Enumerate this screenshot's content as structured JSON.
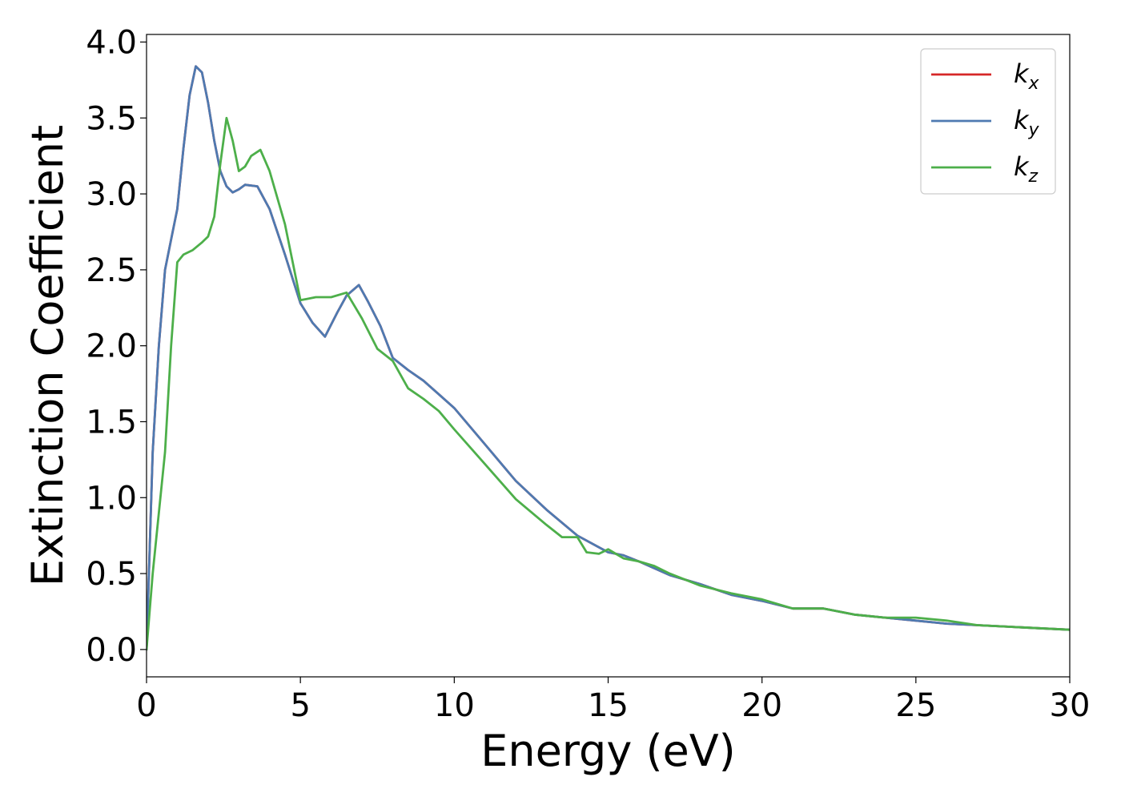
{
  "chart_data": {
    "type": "line",
    "title": "",
    "xlabel": "Energy (eV)",
    "ylabel": "Extinction Coefficient",
    "xlim": [
      0,
      30
    ],
    "ylim": [
      -0.18,
      4.05
    ],
    "xticks": [
      0,
      5,
      10,
      15,
      20,
      25,
      30
    ],
    "xtick_labels": [
      "0",
      "5",
      "10",
      "15",
      "20",
      "25",
      "30"
    ],
    "yticks": [
      0.0,
      0.5,
      1.0,
      1.5,
      2.0,
      2.5,
      3.0,
      3.5,
      4.0
    ],
    "ytick_labels": [
      "0.0",
      "0.5",
      "1.0",
      "1.5",
      "2.0",
      "2.5",
      "3.0",
      "3.5",
      "4.0"
    ],
    "grid": false,
    "legend_position": "top-right",
    "series": [
      {
        "name": "k",
        "subscript": "x",
        "color": "#d62728",
        "x": [
          0,
          0.2,
          0.4,
          0.6,
          0.8,
          1.0,
          1.2,
          1.4,
          1.6,
          1.8,
          2.0,
          2.2,
          2.4,
          2.6,
          2.8,
          3.0,
          3.2,
          3.6,
          4.0,
          4.5,
          5.0,
          5.4,
          5.8,
          6.2,
          6.5,
          6.9,
          7.2,
          7.6,
          8.0,
          8.5,
          9.0,
          9.5,
          10.0,
          11.0,
          12.0,
          13.0,
          14.0,
          15.0,
          15.5,
          16.0,
          17.0,
          18.0,
          19.0,
          20.0,
          21.0,
          22.0,
          23.0,
          24.0,
          25.0,
          26.0,
          27.0,
          28.0,
          29.0,
          30.0
        ],
        "y": [
          0.0,
          1.3,
          2.0,
          2.5,
          2.7,
          2.9,
          3.3,
          3.65,
          3.84,
          3.8,
          3.6,
          3.35,
          3.15,
          3.05,
          3.01,
          3.03,
          3.06,
          3.05,
          2.9,
          2.6,
          2.28,
          2.15,
          2.06,
          2.22,
          2.33,
          2.4,
          2.29,
          2.13,
          1.92,
          1.84,
          1.77,
          1.68,
          1.59,
          1.35,
          1.11,
          0.92,
          0.75,
          0.64,
          0.62,
          0.58,
          0.49,
          0.43,
          0.36,
          0.32,
          0.27,
          0.27,
          0.23,
          0.21,
          0.19,
          0.17,
          0.16,
          0.15,
          0.14,
          0.13
        ]
      },
      {
        "name": "k",
        "subscript": "y",
        "color": "#4e7ab1",
        "x": [
          0,
          0.2,
          0.4,
          0.6,
          0.8,
          1.0,
          1.2,
          1.4,
          1.6,
          1.8,
          2.0,
          2.2,
          2.4,
          2.6,
          2.8,
          3.0,
          3.2,
          3.6,
          4.0,
          4.5,
          5.0,
          5.4,
          5.8,
          6.2,
          6.5,
          6.9,
          7.2,
          7.6,
          8.0,
          8.5,
          9.0,
          9.5,
          10.0,
          11.0,
          12.0,
          13.0,
          14.0,
          15.0,
          15.5,
          16.0,
          17.0,
          18.0,
          19.0,
          20.0,
          21.0,
          22.0,
          23.0,
          24.0,
          25.0,
          26.0,
          27.0,
          28.0,
          29.0,
          30.0
        ],
        "y": [
          0.0,
          1.3,
          2.0,
          2.5,
          2.7,
          2.9,
          3.3,
          3.65,
          3.84,
          3.8,
          3.6,
          3.35,
          3.15,
          3.05,
          3.01,
          3.03,
          3.06,
          3.05,
          2.9,
          2.6,
          2.28,
          2.15,
          2.06,
          2.22,
          2.33,
          2.4,
          2.29,
          2.13,
          1.92,
          1.84,
          1.77,
          1.68,
          1.59,
          1.35,
          1.11,
          0.92,
          0.75,
          0.64,
          0.62,
          0.58,
          0.49,
          0.43,
          0.36,
          0.32,
          0.27,
          0.27,
          0.23,
          0.21,
          0.19,
          0.17,
          0.16,
          0.15,
          0.14,
          0.13
        ]
      },
      {
        "name": "k",
        "subscript": "z",
        "color": "#4daf4a",
        "x": [
          0,
          0.2,
          0.4,
          0.6,
          0.8,
          1.0,
          1.2,
          1.5,
          1.8,
          2.0,
          2.2,
          2.4,
          2.6,
          2.8,
          3.0,
          3.2,
          3.4,
          3.7,
          4.0,
          4.5,
          5.0,
          5.5,
          6.0,
          6.5,
          7.0,
          7.5,
          8.0,
          8.5,
          9.0,
          9.5,
          10.0,
          11.0,
          12.0,
          13.0,
          13.5,
          14.0,
          14.3,
          14.7,
          15.0,
          15.5,
          16.0,
          16.5,
          17.0,
          18.0,
          19.0,
          20.0,
          21.0,
          22.0,
          23.0,
          24.0,
          25.0,
          26.0,
          27.0,
          28.0,
          29.0,
          30.0
        ],
        "y": [
          0.0,
          0.5,
          0.9,
          1.3,
          2.0,
          2.55,
          2.6,
          2.63,
          2.68,
          2.72,
          2.85,
          3.2,
          3.5,
          3.35,
          3.15,
          3.18,
          3.25,
          3.29,
          3.15,
          2.8,
          2.3,
          2.32,
          2.32,
          2.35,
          2.18,
          1.98,
          1.9,
          1.72,
          1.65,
          1.57,
          1.45,
          1.22,
          0.99,
          0.82,
          0.74,
          0.74,
          0.64,
          0.63,
          0.66,
          0.6,
          0.58,
          0.55,
          0.5,
          0.42,
          0.37,
          0.33,
          0.27,
          0.27,
          0.23,
          0.21,
          0.21,
          0.19,
          0.16,
          0.15,
          0.14,
          0.13
        ]
      }
    ]
  }
}
